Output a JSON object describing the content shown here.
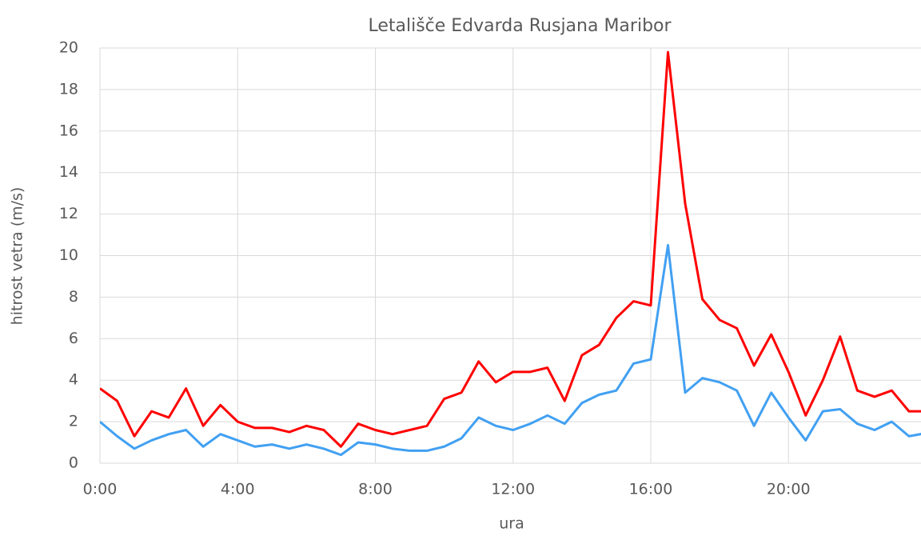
{
  "chart_data": {
    "type": "line",
    "title": "Letališče Edvarda Rusjana Maribor",
    "xlabel": "ura",
    "ylabel": "hitrost vetra (m/s)",
    "x": [
      0,
      0.5,
      1,
      1.5,
      2,
      2.5,
      3,
      3.5,
      4,
      4.5,
      5,
      5.5,
      6,
      6.5,
      7,
      7.5,
      8,
      8.5,
      9,
      9.5,
      10,
      10.5,
      11,
      11.5,
      12,
      12.5,
      13,
      13.5,
      14,
      14.5,
      15,
      15.5,
      16,
      16.5,
      17,
      17.5,
      18,
      18.5,
      19,
      19.5,
      20,
      20.5,
      21,
      21.5,
      22,
      22.5,
      23,
      23.5,
      24
    ],
    "series": [
      {
        "color": "#ff0000",
        "values": [
          3.6,
          3.0,
          1.3,
          2.5,
          2.2,
          3.6,
          1.8,
          2.8,
          2.0,
          1.7,
          1.7,
          1.5,
          1.8,
          1.6,
          0.8,
          1.9,
          1.6,
          1.4,
          1.6,
          1.8,
          3.1,
          3.4,
          4.9,
          3.9,
          4.4,
          4.4,
          4.6,
          3.0,
          5.2,
          5.7,
          7.0,
          7.8,
          7.6,
          19.8,
          12.5,
          7.9,
          6.9,
          6.5,
          4.7,
          6.2,
          4.4,
          2.3,
          4.0,
          6.1,
          3.5,
          3.2,
          3.5,
          2.5,
          2.5
        ]
      },
      {
        "color": "#41a0f2",
        "values": [
          2.0,
          1.3,
          0.7,
          1.1,
          1.4,
          1.6,
          0.8,
          1.4,
          1.1,
          0.8,
          0.9,
          0.7,
          0.9,
          0.7,
          0.4,
          1.0,
          0.9,
          0.7,
          0.6,
          0.6,
          0.8,
          1.2,
          2.2,
          1.8,
          1.6,
          1.9,
          2.3,
          1.9,
          2.9,
          3.3,
          3.5,
          4.8,
          5.0,
          10.5,
          3.4,
          4.1,
          3.9,
          3.5,
          1.8,
          3.4,
          2.2,
          1.1,
          2.5,
          2.6,
          1.9,
          1.6,
          2.0,
          1.3,
          1.45
        ]
      }
    ],
    "xlim": [
      0,
      23.85
    ],
    "xticks": [
      {
        "value": 0,
        "label": "0:00"
      },
      {
        "value": 4,
        "label": "4:00"
      },
      {
        "value": 8,
        "label": "8:00"
      },
      {
        "value": 12,
        "label": "12:00"
      },
      {
        "value": 16,
        "label": "16:00"
      },
      {
        "value": 20,
        "label": "20:00"
      }
    ],
    "ylim": [
      0,
      20
    ],
    "yticks": [
      0,
      2,
      4,
      6,
      8,
      10,
      12,
      14,
      16,
      18,
      20
    ],
    "grid": true
  }
}
